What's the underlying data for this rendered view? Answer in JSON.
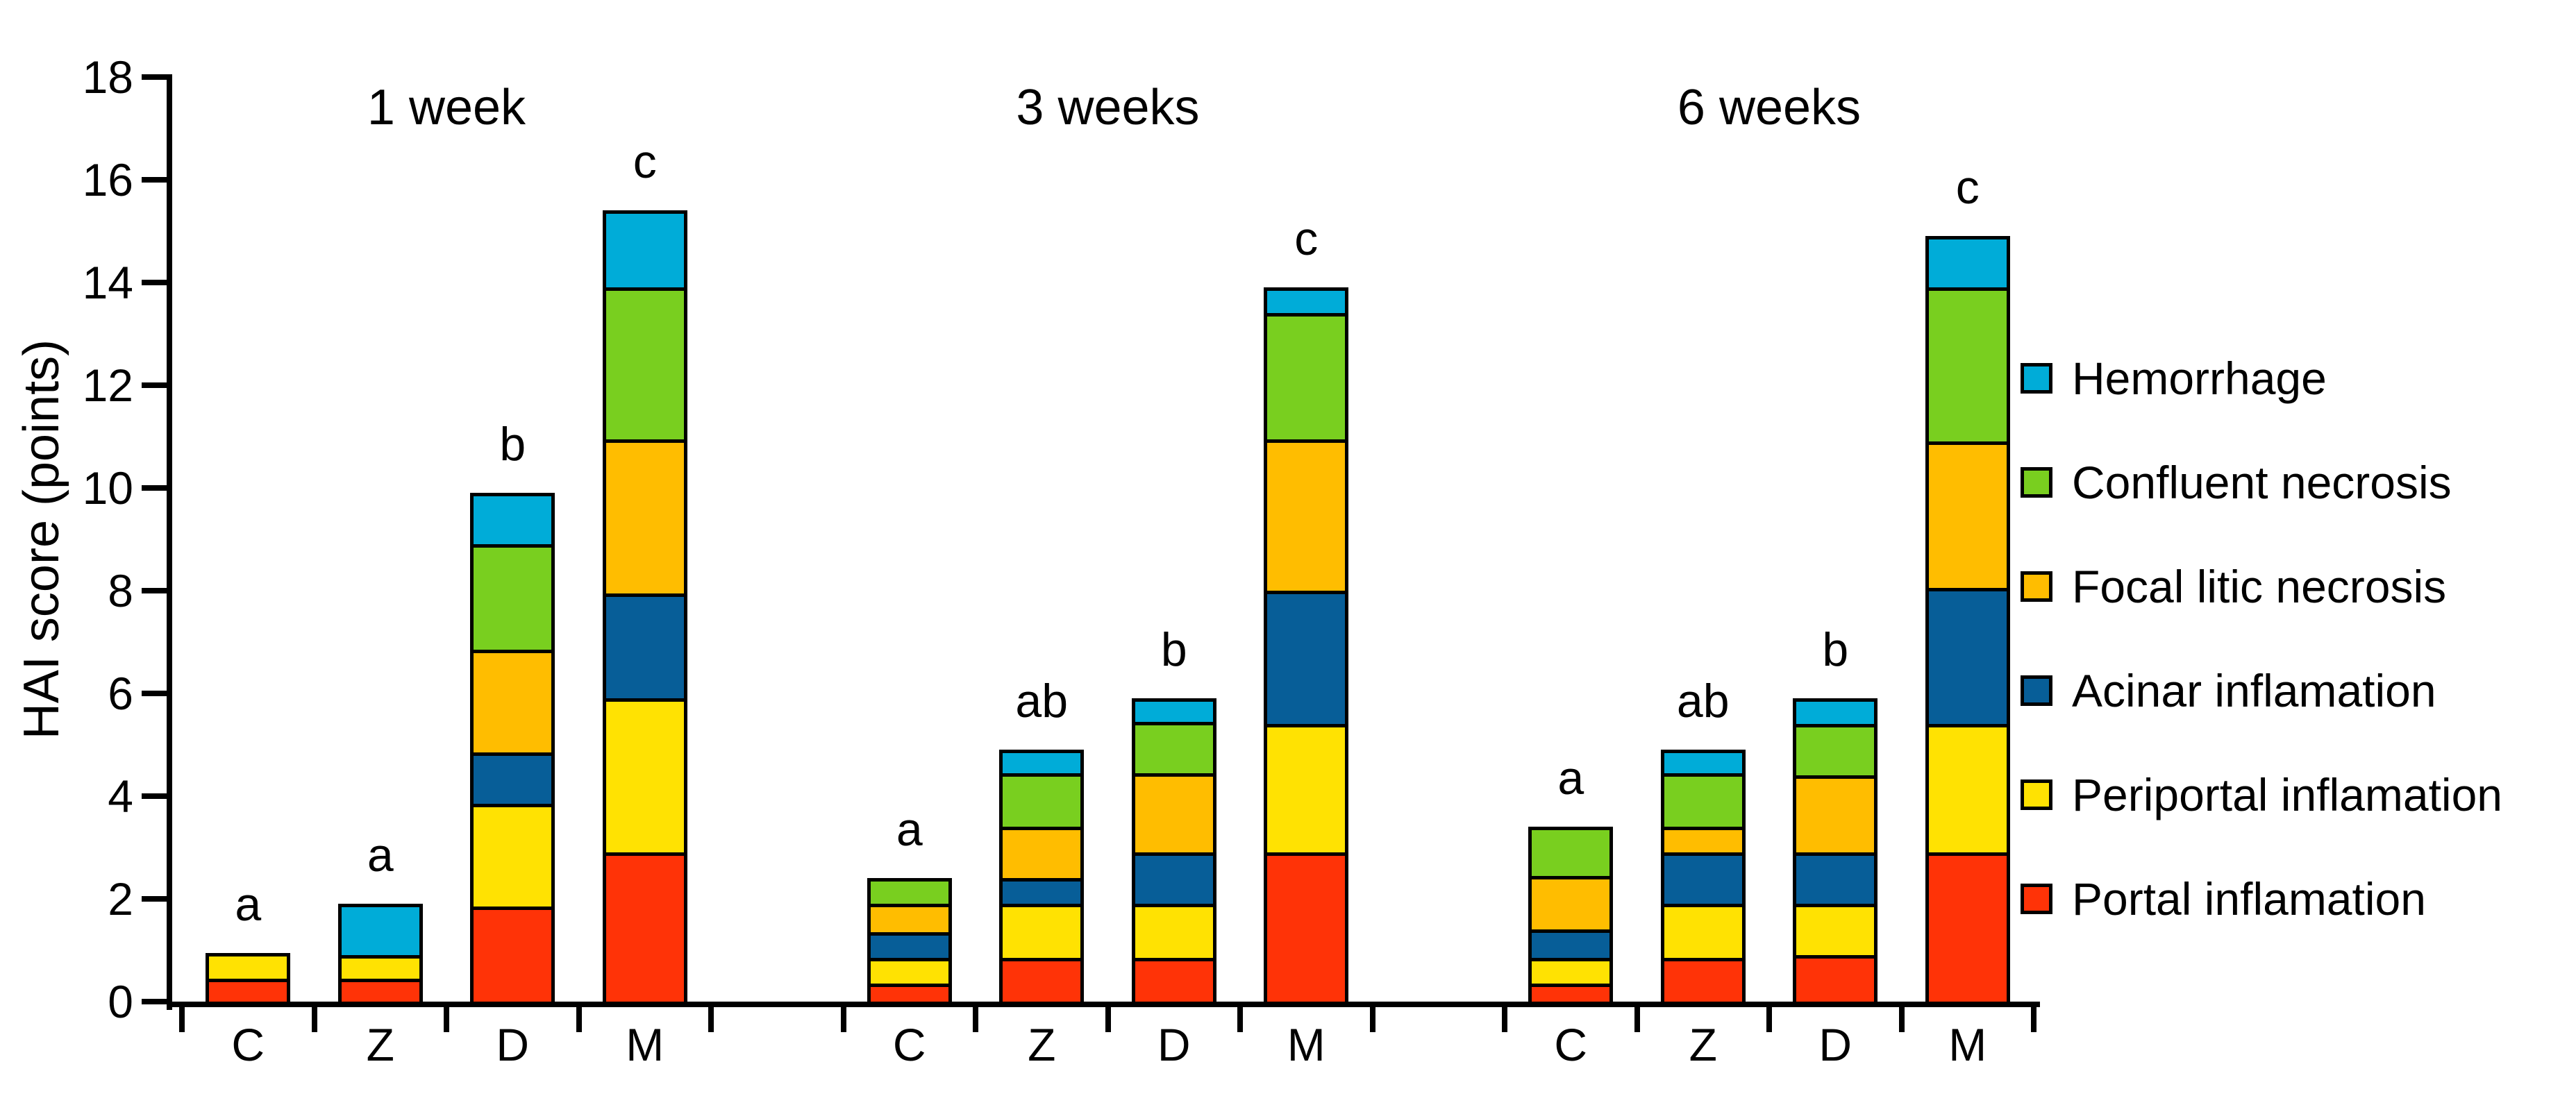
{
  "figure": {
    "background_color": "#ffffff",
    "text_color": "#000000"
  },
  "chart_data": {
    "type": "bar",
    "stacked": true,
    "title": "",
    "xlabel": "",
    "ylabel": "HAI score (points)",
    "ylim": [
      0,
      18
    ],
    "ytick_step": 2,
    "ytick_labels": [
      "0",
      "2",
      "4",
      "6",
      "8",
      "10",
      "12",
      "14",
      "16",
      "18"
    ],
    "grid": false,
    "legend_position": "right",
    "series": [
      {
        "name": "Portal inflamation",
        "color": "#FF3307"
      },
      {
        "name": "Periportal inflamation",
        "color": "#FFE202"
      },
      {
        "name": "Acinar inflamation",
        "color": "#075E98"
      },
      {
        "name": "Focal litic necrosis",
        "color": "#FFBD00"
      },
      {
        "name": "Confluent necrosis",
        "color": "#79CF1F"
      },
      {
        "name": "Hemorrhage",
        "color": "#00ACD8"
      }
    ],
    "stack_order_note": "series listed bottom-to-top of each stacked bar",
    "legend_order_top_to_bottom": [
      "Hemorrhage",
      "Confluent necrosis",
      "Focal litic necrosis",
      "Acinar inflamation",
      "Periportal inflamation",
      "Portal inflamation"
    ],
    "groups": [
      {
        "label": "1 week",
        "bars": [
          {
            "category": "C",
            "sig_letter": "a",
            "values": [
              0.45,
              0.5,
              0,
              0,
              0,
              0
            ],
            "total": 0.95
          },
          {
            "category": "Z",
            "sig_letter": "a",
            "values": [
              0.45,
              0.45,
              0,
              0,
              0,
              1.0
            ],
            "total": 1.9
          },
          {
            "category": "D",
            "sig_letter": "b",
            "values": [
              1.85,
              2.0,
              1.0,
              2.0,
              2.05,
              1.0
            ],
            "total": 9.9
          },
          {
            "category": "M",
            "sig_letter": "c",
            "values": [
              2.9,
              3.0,
              2.05,
              3.0,
              2.95,
              1.5
            ],
            "total": 15.4
          }
        ]
      },
      {
        "label": "3 weeks",
        "bars": [
          {
            "category": "C",
            "sig_letter": "a",
            "values": [
              0.35,
              0.5,
              0.5,
              0.55,
              0.5,
              0
            ],
            "total": 2.4
          },
          {
            "category": "Z",
            "sig_letter": "ab",
            "values": [
              0.85,
              1.05,
              0.5,
              1.0,
              1.05,
              0.45
            ],
            "total": 4.9
          },
          {
            "category": "D",
            "sig_letter": "b",
            "values": [
              0.85,
              1.05,
              1.0,
              1.55,
              1.0,
              0.45
            ],
            "total": 5.9
          },
          {
            "category": "M",
            "sig_letter": "c",
            "values": [
              2.9,
              2.5,
              2.6,
              2.95,
              2.45,
              0.5
            ],
            "total": 13.9
          }
        ]
      },
      {
        "label": "6 weeks",
        "bars": [
          {
            "category": "C",
            "sig_letter": "a",
            "values": [
              0.35,
              0.5,
              0.55,
              1.05,
              0.95,
              0
            ],
            "total": 3.4
          },
          {
            "category": "Z",
            "sig_letter": "ab",
            "values": [
              0.85,
              1.05,
              1.0,
              0.5,
              1.05,
              0.45
            ],
            "total": 4.9
          },
          {
            "category": "D",
            "sig_letter": "b",
            "values": [
              0.9,
              1.0,
              1.0,
              1.5,
              1.0,
              0.5
            ],
            "total": 5.9
          },
          {
            "category": "M",
            "sig_letter": "c",
            "values": [
              2.9,
              2.5,
              2.65,
              2.85,
              3.0,
              1.0
            ],
            "total": 14.9
          }
        ]
      }
    ]
  }
}
